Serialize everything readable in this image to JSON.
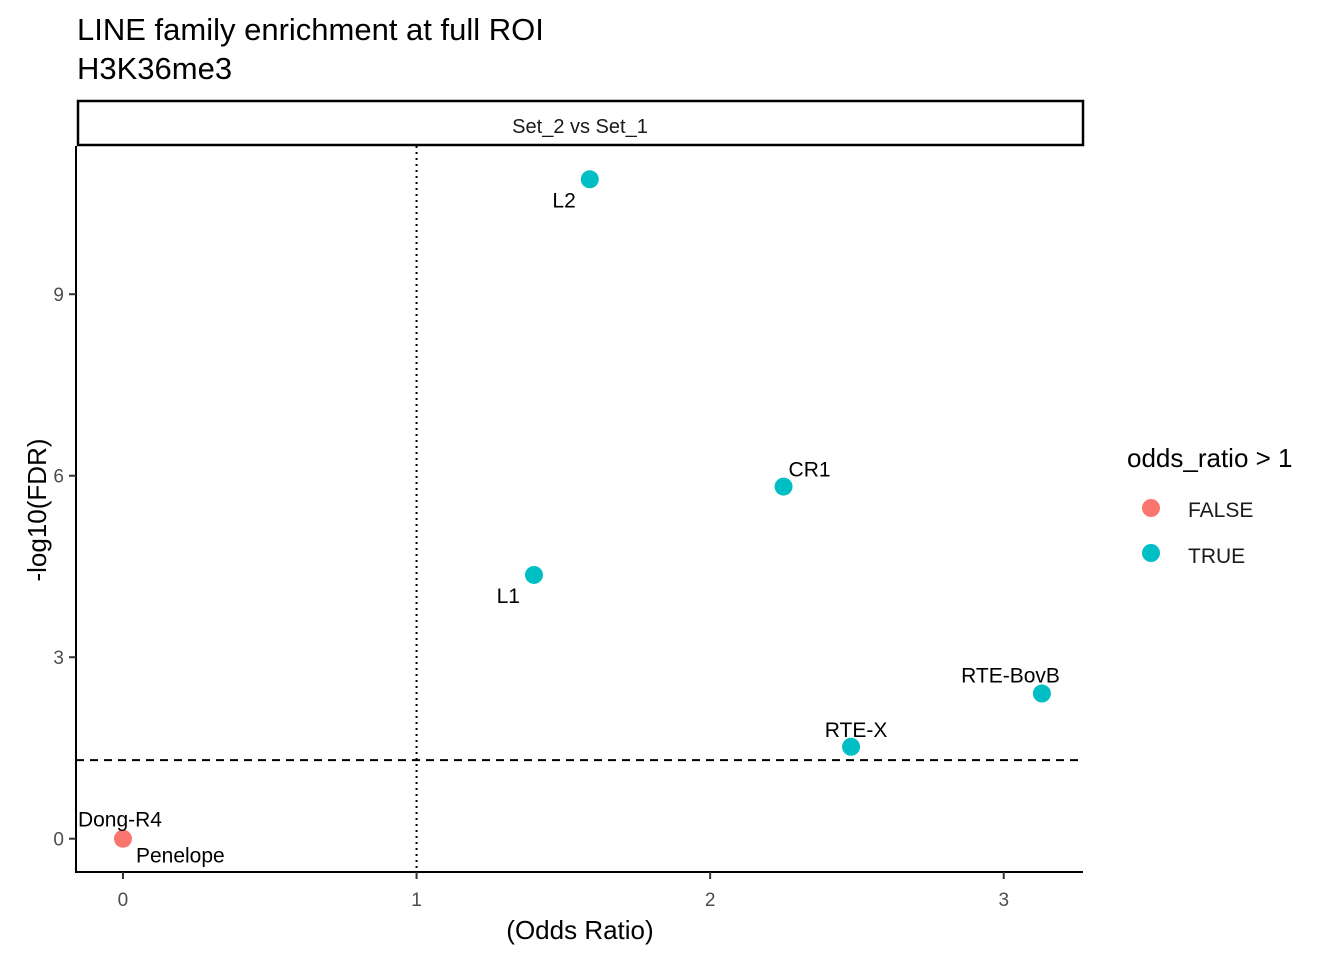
{
  "chart_data": {
    "type": "scatter",
    "title_lines": [
      "LINE family enrichment at full ROI",
      "H3K36me3"
    ],
    "facet": "Set_2 vs Set_1",
    "xlabel": "(Odds Ratio)",
    "ylabel": "-log10(FDR)",
    "xlim": [
      -0.16,
      3.27
    ],
    "ylim": [
      -0.55,
      11.45
    ],
    "xticks": [
      0,
      1,
      2,
      3
    ],
    "yticks": [
      0,
      3,
      6,
      9
    ],
    "vline_x": 1,
    "hline_y": 1.3,
    "legend": {
      "title": "odds_ratio > 1",
      "position": "right",
      "entries": [
        {
          "label": "FALSE",
          "color": "#F8766D"
        },
        {
          "label": "TRUE",
          "color": "#00BFC4"
        }
      ]
    },
    "points": [
      {
        "name": "L2",
        "x": 1.59,
        "y": 10.9,
        "group": "TRUE",
        "label_anchor": "end",
        "label_pos": "below-left"
      },
      {
        "name": "CR1",
        "x": 2.25,
        "y": 5.82,
        "group": "TRUE",
        "label_anchor": "start",
        "label_pos": "above-right"
      },
      {
        "name": "L1",
        "x": 1.4,
        "y": 4.36,
        "group": "TRUE",
        "label_anchor": "end",
        "label_pos": "below-left"
      },
      {
        "name": "RTE-BovB",
        "x": 3.13,
        "y": 2.4,
        "group": "TRUE",
        "label_anchor": "end",
        "label_pos": "above-left"
      },
      {
        "name": "RTE-X",
        "x": 2.48,
        "y": 1.52,
        "group": "TRUE",
        "label_anchor": "middle",
        "label_pos": "above-right"
      },
      {
        "name": "Dong-R4",
        "x": 0.0,
        "y": 0.0,
        "group": "FALSE",
        "label_anchor": "middle",
        "label_pos": "above"
      },
      {
        "name": "Penelope",
        "x": 0.0,
        "y": 0.0,
        "group": "FALSE",
        "label_anchor": "start",
        "label_pos": "below-right"
      }
    ]
  }
}
